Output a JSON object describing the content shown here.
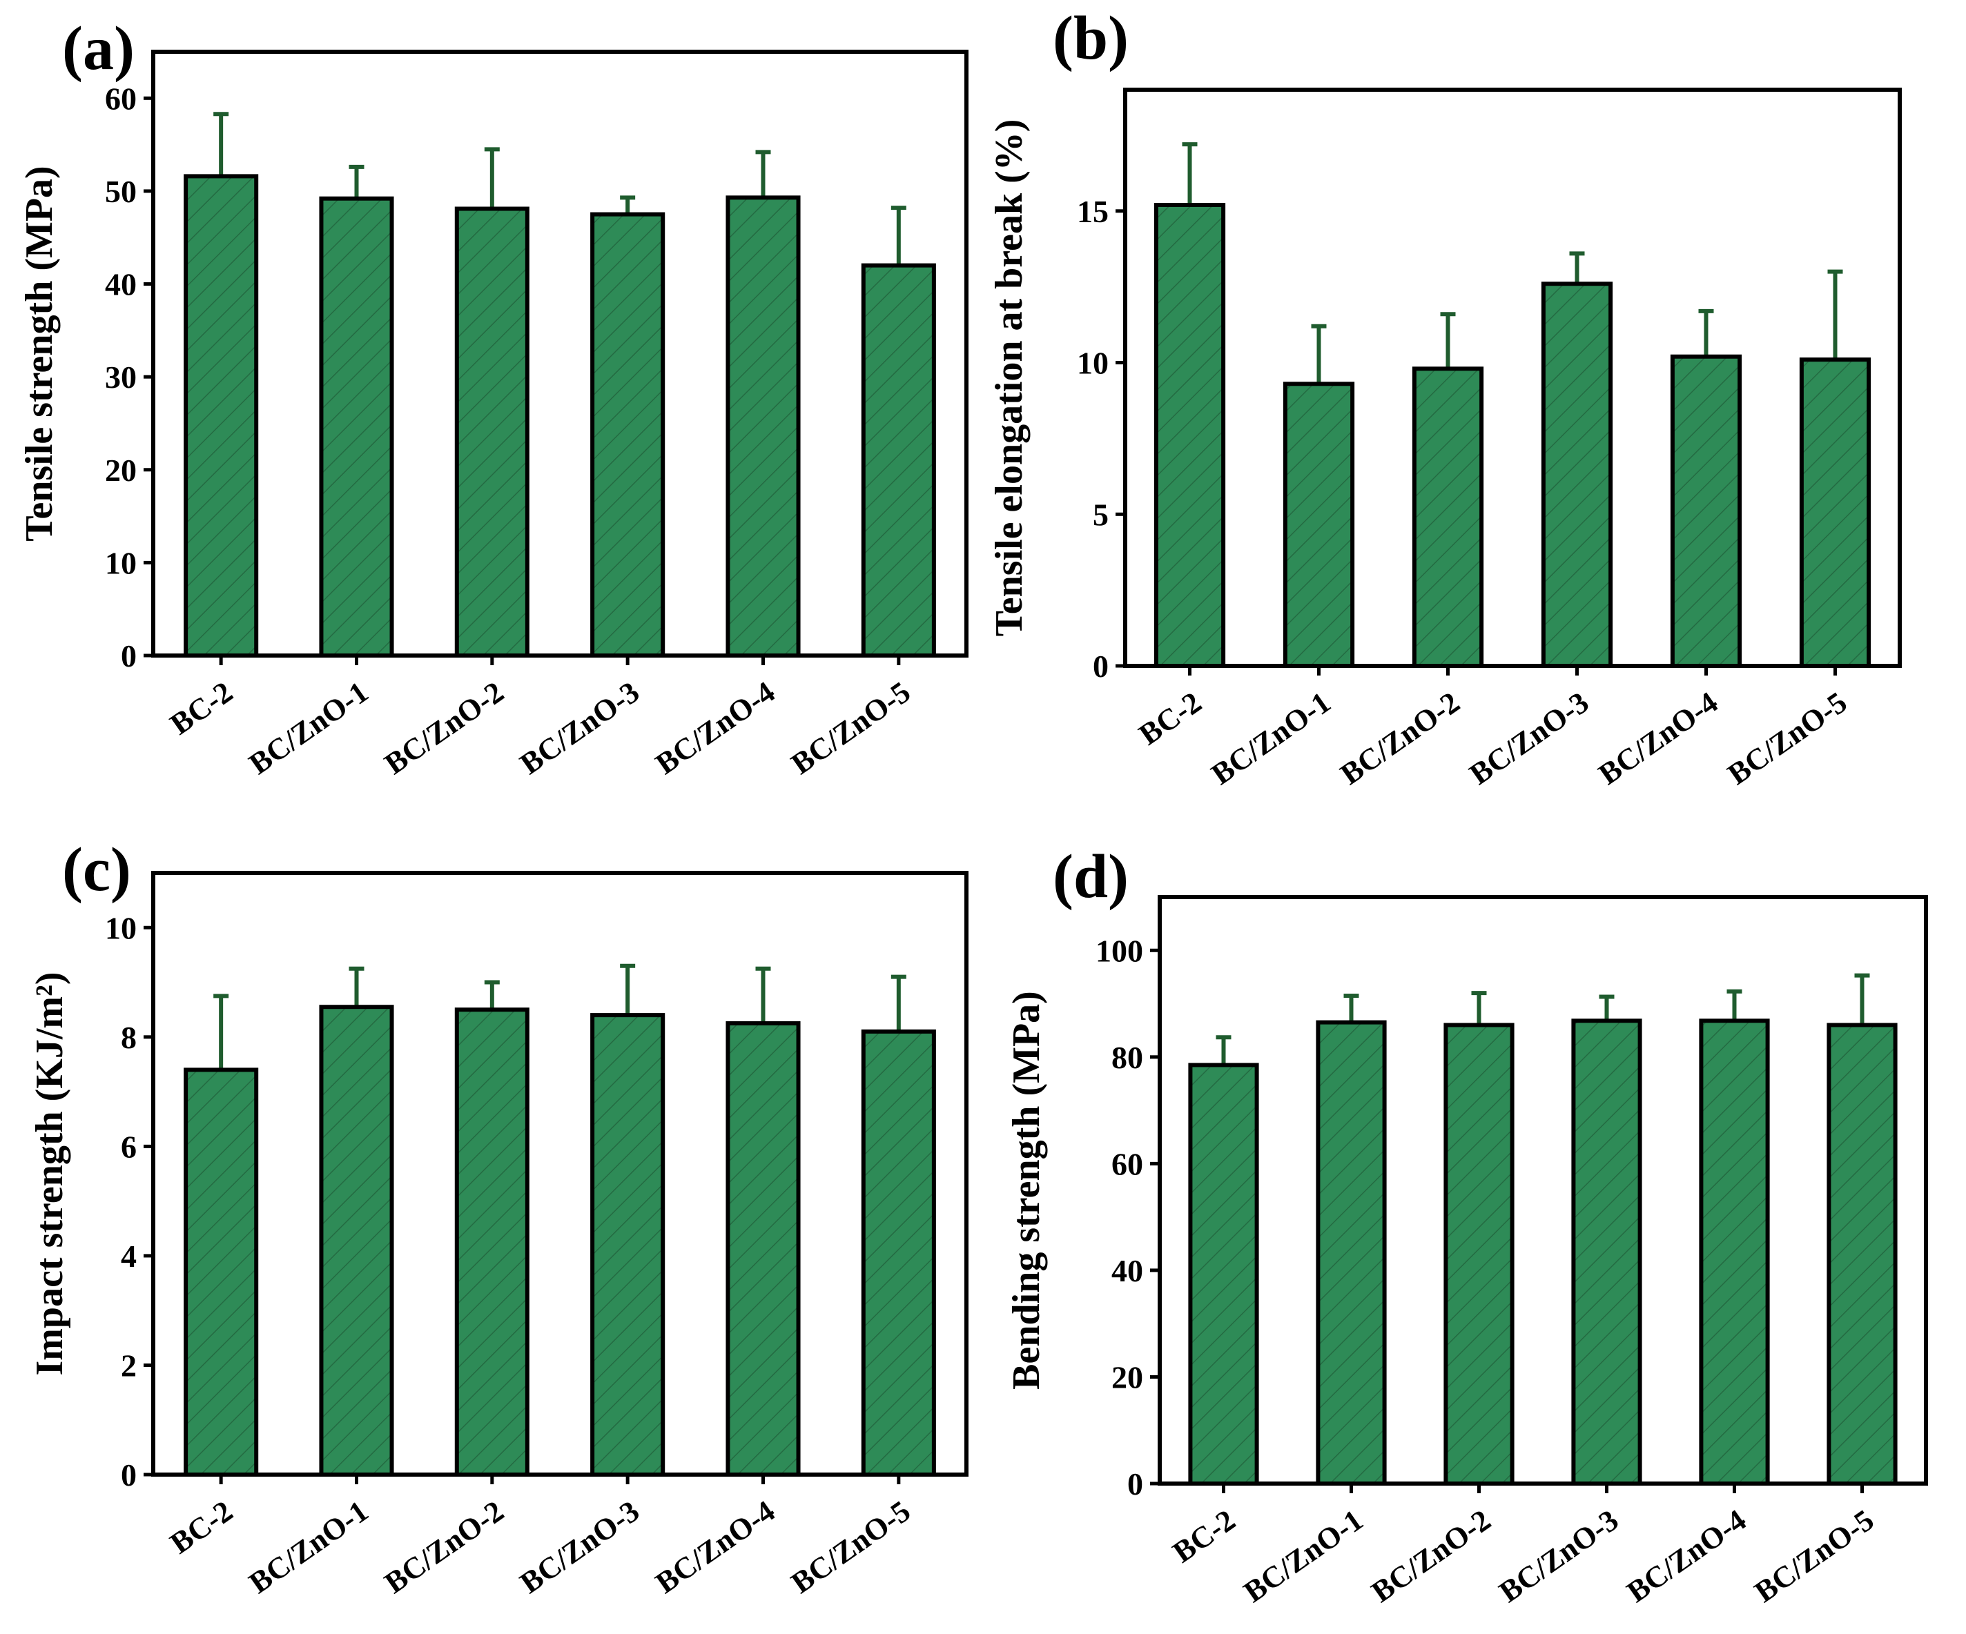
{
  "style": {
    "bar_color": "#2e8b57",
    "error_color": "#1f5c2e",
    "axis_color": "#000000"
  },
  "chart_data": [
    {
      "panel": "(a)",
      "type": "bar",
      "categories": [
        "BC-2",
        "BC/ZnO-1",
        "BC/ZnO-2",
        "BC/ZnO-3",
        "BC/ZnO-4",
        "BC/ZnO-5"
      ],
      "values": [
        51.6,
        49.2,
        48.1,
        47.5,
        49.3,
        42.0
      ],
      "errors": [
        6.7,
        3.4,
        6.4,
        1.8,
        4.9,
        6.2
      ],
      "ylabel": "Tensile strength (MPa)",
      "ylim": [
        0,
        65
      ],
      "yticks": [
        "0",
        "10",
        "20",
        "30",
        "40",
        "50",
        "60"
      ]
    },
    {
      "panel": "(b)",
      "type": "bar",
      "categories": [
        "BC-2",
        "BC/ZnO-1",
        "BC/ZnO-2",
        "BC/ZnO-3",
        "BC/ZnO-4",
        "BC/ZnO-5"
      ],
      "values": [
        15.2,
        9.3,
        9.8,
        12.6,
        10.2,
        10.1
      ],
      "errors": [
        2.0,
        1.9,
        1.8,
        1.0,
        1.5,
        2.9
      ],
      "ylabel": "Tensile elongation at break (%)",
      "ylim": [
        0,
        19
      ],
      "yticks": [
        "0",
        "5",
        "10",
        "15"
      ]
    },
    {
      "panel": "(c)",
      "type": "bar",
      "categories": [
        "BC-2",
        "BC/ZnO-1",
        "BC/ZnO-2",
        "BC/ZnO-3",
        "BC/ZnO-4",
        "BC/ZnO-5"
      ],
      "values": [
        7.4,
        8.55,
        8.5,
        8.4,
        8.25,
        8.1
      ],
      "errors": [
        1.35,
        0.7,
        0.5,
        0.9,
        1.0,
        1.0
      ],
      "ylabel": "Impact strength (KJ/m²)",
      "ylim": [
        0,
        11
      ],
      "yticks": [
        "0",
        "2",
        "4",
        "6",
        "8",
        "10"
      ]
    },
    {
      "panel": "(d)",
      "type": "bar",
      "categories": [
        "BC-2",
        "BC/ZnO-1",
        "BC/ZnO-2",
        "BC/ZnO-3",
        "BC/ZnO-4",
        "BC/ZnO-5"
      ],
      "values": [
        78.5,
        86.5,
        86.0,
        86.8,
        86.8,
        86.0
      ],
      "errors": [
        5.2,
        5.0,
        6.0,
        4.5,
        5.5,
        9.3
      ],
      "ylabel": "Bending strength (MPa)",
      "ylim": [
        0,
        110
      ],
      "yticks": [
        "0",
        "20",
        "40",
        "60",
        "80",
        "100"
      ]
    }
  ]
}
